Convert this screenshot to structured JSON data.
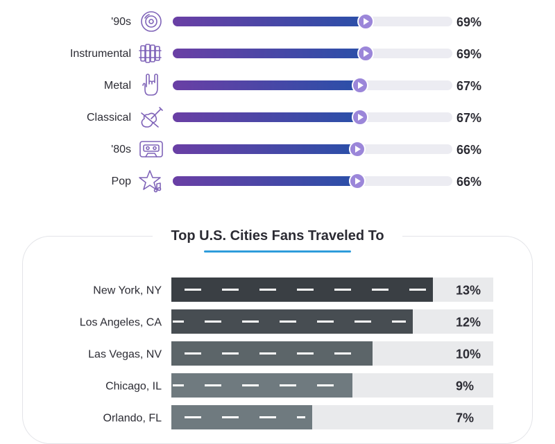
{
  "genres_section": {
    "rows": [
      {
        "label": "'90s",
        "value": 69,
        "value_text": "69%",
        "icon": "cd-disc-icon"
      },
      {
        "label": "Instrumental",
        "value": 69,
        "value_text": "69%",
        "icon": "xylophone-icon"
      },
      {
        "label": "Metal",
        "value": 67,
        "value_text": "67%",
        "icon": "rock-hand-icon"
      },
      {
        "label": "Classical",
        "value": 67,
        "value_text": "67%",
        "icon": "violin-icon"
      },
      {
        "label": "'80s",
        "value": 66,
        "value_text": "66%",
        "icon": "cassette-icon"
      },
      {
        "label": "Pop",
        "value": 66,
        "value_text": "66%",
        "icon": "star-music-icon"
      }
    ],
    "colors": {
      "gradient_start": "#6a3fa5",
      "gradient_end": "#2a4fa8",
      "track": "#ececf2",
      "knob": "#9b86d9"
    }
  },
  "cities_section": {
    "title": "Top U.S. Cities Fans Traveled To",
    "colors": {
      "road_dark": "#3a3f44",
      "road_light": "#6f7a7f",
      "track": "#e9eaec",
      "dash": "#ffffff"
    }
  },
  "chart_data": [
    {
      "type": "bar",
      "categories": [
        "'90s",
        "Instrumental",
        "Metal",
        "Classical",
        "'80s",
        "Pop"
      ],
      "values": [
        69,
        69,
        67,
        67,
        66,
        66
      ],
      "value_labels": [
        "69%",
        "69%",
        "67%",
        "67%",
        "66%",
        "66%"
      ],
      "orientation": "horizontal",
      "xlim": [
        0,
        100
      ]
    },
    {
      "type": "bar",
      "title": "Top U.S. Cities Fans Traveled To",
      "categories": [
        "New York, NY",
        "Los Angeles, CA",
        "Las Vegas, NV",
        "Chicago, IL",
        "Orlando, FL"
      ],
      "values": [
        13,
        12,
        10,
        9,
        7
      ],
      "value_labels": [
        "13%",
        "12%",
        "10%",
        "9%",
        "7%"
      ],
      "orientation": "horizontal",
      "xlim": [
        0,
        16
      ]
    }
  ]
}
